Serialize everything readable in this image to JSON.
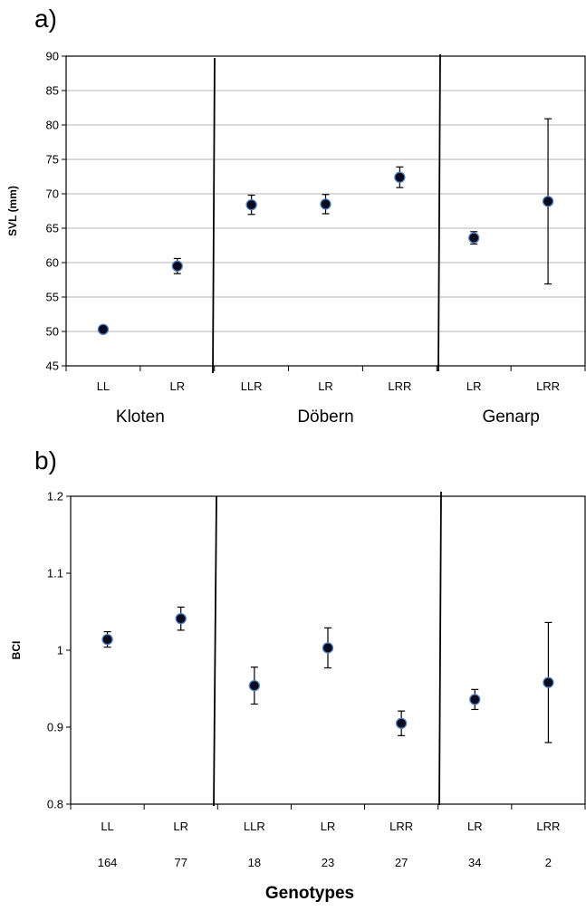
{
  "chart_data": [
    {
      "type": "scatter",
      "panel_label": "a)",
      "ylabel": "SVL (mm)",
      "xlabel": "",
      "ylim": [
        45,
        90
      ],
      "yticks": [
        45,
        50,
        55,
        60,
        65,
        70,
        75,
        80,
        85,
        90
      ],
      "grid": true,
      "categories": [
        "LL",
        "LR",
        "LLR",
        "LR",
        "LRR",
        "LR",
        "LRR"
      ],
      "groups": [
        {
          "label": "Kloten",
          "span": [
            0,
            1
          ]
        },
        {
          "label": "Döbern",
          "span": [
            2,
            4
          ]
        },
        {
          "label": "Genarp",
          "span": [
            5,
            6
          ]
        }
      ],
      "values": [
        50.3,
        59.5,
        68.4,
        68.5,
        72.4,
        63.6,
        68.9
      ],
      "error": [
        0.3,
        1.1,
        1.4,
        1.4,
        1.5,
        0.9,
        12.0
      ]
    },
    {
      "type": "scatter",
      "panel_label": "b)",
      "ylabel": "BCI",
      "xlabel": "Genotypes",
      "ylim": [
        0.8,
        1.2
      ],
      "yticks": [
        "0.8",
        "0.9",
        "1",
        "1.1",
        "1.2"
      ],
      "grid": false,
      "categories": [
        "LL",
        "LR",
        "LLR",
        "LR",
        "LRR",
        "LR",
        "LRR"
      ],
      "counts": [
        "164",
        "77",
        "18",
        "23",
        "27",
        "34",
        "2"
      ],
      "values": [
        1.014,
        1.041,
        0.954,
        1.003,
        0.905,
        0.936,
        0.958
      ],
      "error": [
        0.01,
        0.015,
        0.024,
        0.026,
        0.016,
        0.013,
        0.078
      ]
    }
  ],
  "colors": {
    "marker_fill": "#0a0a1e",
    "marker_stroke": "#4f7fbf",
    "grid": "#b4b4b4",
    "axis": "#000000"
  }
}
